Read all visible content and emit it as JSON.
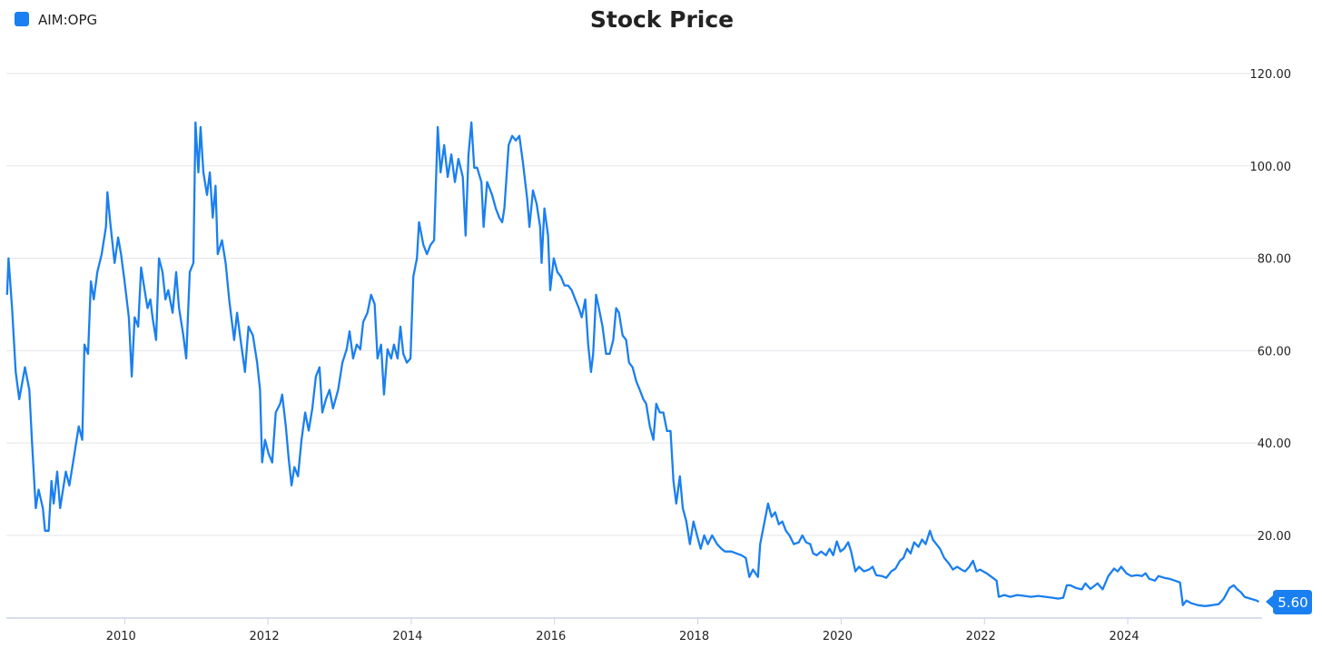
{
  "chart_data": {
    "type": "line",
    "title": "Stock Price",
    "legend": {
      "position": "top-left",
      "entries": [
        "AIM:OPG"
      ]
    },
    "xlabel": "",
    "ylabel": "",
    "xlim": [
      2008.4,
      2025.9
    ],
    "ylim": [
      2.1,
      120
    ],
    "x_ticks": [
      "2010",
      "2012",
      "2014",
      "2016",
      "2018",
      "2020",
      "2022",
      "2024"
    ],
    "y_ticks": [
      "20.00",
      "40.00",
      "60.00",
      "80.00",
      "100.00",
      "120.00"
    ],
    "y_axis_side": "right",
    "grid": {
      "horizontal": true,
      "vertical": false
    },
    "last_value_label": "5.60",
    "colors": {
      "series": "#1a7ff0",
      "grid": "#e3e5ea",
      "axis": "#ccd3e6"
    },
    "series": [
      {
        "name": "AIM:OPG",
        "x": [
          2008.41,
          2008.43,
          2008.48,
          2008.53,
          2008.58,
          2008.66,
          2008.72,
          2008.76,
          2008.81,
          2008.85,
          2008.91,
          2008.94,
          2008.99,
          2009.03,
          2009.06,
          2009.11,
          2009.15,
          2009.23,
          2009.28,
          2009.34,
          2009.41,
          2009.46,
          2009.49,
          2009.54,
          2009.58,
          2009.62,
          2009.67,
          2009.73,
          2009.79,
          2009.81,
          2009.85,
          2009.91,
          2009.96,
          2010.0,
          2010.05,
          2010.11,
          2010.15,
          2010.19,
          2010.24,
          2010.28,
          2010.33,
          2010.37,
          2010.41,
          2010.44,
          2010.49,
          2010.53,
          2010.58,
          2010.62,
          2010.66,
          2010.72,
          2010.77,
          2010.81,
          2010.87,
          2010.91,
          2010.96,
          2011.01,
          2011.04,
          2011.08,
          2011.11,
          2011.15,
          2011.2,
          2011.24,
          2011.28,
          2011.32,
          2011.35,
          2011.41,
          2011.46,
          2011.51,
          2011.54,
          2011.58,
          2011.62,
          2011.67,
          2011.73,
          2011.78,
          2011.84,
          2011.9,
          2011.94,
          2011.97,
          2012.01,
          2012.06,
          2012.11,
          2012.16,
          2012.22,
          2012.25,
          2012.3,
          2012.34,
          2012.38,
          2012.42,
          2012.47,
          2012.52,
          2012.57,
          2012.62,
          2012.67,
          2012.72,
          2012.77,
          2012.81,
          2012.86,
          2012.91,
          2012.96,
          2013.03,
          2013.09,
          2013.15,
          2013.19,
          2013.24,
          2013.29,
          2013.34,
          2013.38,
          2013.44,
          2013.49,
          2013.54,
          2013.58,
          2013.63,
          2013.67,
          2013.72,
          2013.77,
          2013.81,
          2013.86,
          2013.9,
          2013.94,
          2013.99,
          2014.04,
          2014.08,
          2014.13,
          2014.16,
          2014.22,
          2014.27,
          2014.32,
          2014.37,
          2014.42,
          2014.46,
          2014.51,
          2014.56,
          2014.61,
          2014.66,
          2014.71,
          2014.77,
          2014.81,
          2014.85,
          2014.89,
          2014.93,
          2014.97,
          2015.03,
          2015.06,
          2015.11,
          2015.18,
          2015.23,
          2015.28,
          2015.32,
          2015.35,
          2015.41,
          2015.46,
          2015.51,
          2015.56,
          2015.61,
          2015.67,
          2015.7,
          2015.75,
          2015.8,
          2015.85,
          2015.87,
          2015.91,
          2015.96,
          2015.99,
          2016.04,
          2016.09,
          2016.14,
          2016.19,
          2016.24,
          2016.29,
          2016.34,
          2016.39,
          2016.43,
          2016.48,
          2016.52,
          2016.56,
          2016.59,
          2016.63,
          2016.67,
          2016.72,
          2016.77,
          2016.82,
          2016.87,
          2016.91,
          2016.95,
          2017.0,
          2017.05,
          2017.09,
          2017.14,
          2017.19,
          2017.24,
          2017.29,
          2017.33,
          2017.38,
          2017.43,
          2017.47,
          2017.52,
          2017.57,
          2017.62,
          2017.67,
          2017.71,
          2017.75,
          2017.8,
          2017.84,
          2017.89,
          2017.94,
          2017.99,
          2018.04,
          2018.09,
          2018.14,
          2018.19,
          2018.25,
          2018.32,
          2018.38,
          2018.43,
          2018.52,
          2018.59,
          2018.66,
          2018.72,
          2018.77,
          2018.82,
          2018.89,
          2018.92,
          2018.97,
          2019.03,
          2019.08,
          2019.13,
          2019.18,
          2019.23,
          2019.28,
          2019.33,
          2019.39,
          2019.46,
          2019.51,
          2019.56,
          2019.62,
          2019.66,
          2019.71,
          2019.77,
          2019.84,
          2019.89,
          2019.94,
          2019.99,
          2020.04,
          2020.09,
          2020.15,
          2020.19,
          2020.25,
          2020.3,
          2020.37,
          2020.44,
          2020.49,
          2020.54,
          2020.62,
          2020.68,
          2020.75,
          2020.81,
          2020.87,
          2020.92,
          2020.97,
          2021.02,
          2021.07,
          2021.13,
          2021.18,
          2021.23,
          2021.29,
          2021.33,
          2021.38,
          2021.43,
          2021.49,
          2021.56,
          2021.61,
          2021.67,
          2021.73,
          2021.78,
          2021.84,
          2021.89,
          2021.94,
          2021.99,
          2022.08,
          2022.15,
          2022.22,
          2022.25,
          2022.33,
          2022.41,
          2022.51,
          2022.61,
          2022.7,
          2022.8,
          2022.9,
          2023.0,
          2023.08,
          2023.15,
          2023.2,
          2023.25,
          2023.33,
          2023.41,
          2023.46,
          2023.53,
          2023.58,
          2023.63,
          2023.7,
          2023.78,
          2023.86,
          2023.91,
          2023.96,
          2024.03,
          2024.1,
          2024.18,
          2024.25,
          2024.3,
          2024.35,
          2024.43,
          2024.48,
          2024.56,
          2024.63,
          2024.71,
          2024.78,
          2024.82,
          2024.87,
          2024.94,
          2025.03,
          2025.13,
          2025.23,
          2025.32,
          2025.39,
          2025.47,
          2025.53,
          2025.58,
          2025.63,
          2025.68,
          2025.76,
          2025.85,
          2025.88
        ],
        "y": [
          72.1,
          80.0,
          69.2,
          55.4,
          49.5,
          56.4,
          51.5,
          39.7,
          25.9,
          29.9,
          25.9,
          21.0,
          21.0,
          31.8,
          26.9,
          33.8,
          25.9,
          33.8,
          30.8,
          36.7,
          43.6,
          40.7,
          61.3,
          59.3,
          75.0,
          71.1,
          77.0,
          80.9,
          86.8,
          94.3,
          87.8,
          79.0,
          84.5,
          80.9,
          75.0,
          67.2,
          54.4,
          67.2,
          65.2,
          78.0,
          73.1,
          69.2,
          71.1,
          67.2,
          62.3,
          80.0,
          77.0,
          71.1,
          73.1,
          68.2,
          77.0,
          69.2,
          63.3,
          58.3,
          77.0,
          79.0,
          109.4,
          98.6,
          108.4,
          98.6,
          93.7,
          98.6,
          88.8,
          95.7,
          80.9,
          83.9,
          79.0,
          71.1,
          67.2,
          62.3,
          68.2,
          62.3,
          55.4,
          65.2,
          63.3,
          57.4,
          51.5,
          35.8,
          40.7,
          37.7,
          35.8,
          46.6,
          48.5,
          50.5,
          43.6,
          36.7,
          30.8,
          34.8,
          32.8,
          40.7,
          46.6,
          42.7,
          47.5,
          54.4,
          56.4,
          46.6,
          49.5,
          51.5,
          47.5,
          51.5,
          57.4,
          60.3,
          64.2,
          58.3,
          61.3,
          60.3,
          66.2,
          68.2,
          72.1,
          70.1,
          58.3,
          61.3,
          50.5,
          60.3,
          58.3,
          61.3,
          58.3,
          65.2,
          59.3,
          57.4,
          58.3,
          76.0,
          80.0,
          87.8,
          82.9,
          80.9,
          82.9,
          83.9,
          108.4,
          98.6,
          104.5,
          97.6,
          102.5,
          96.5,
          101.5,
          97.6,
          84.9,
          102.5,
          109.4,
          99.6,
          99.6,
          96.5,
          86.8,
          96.5,
          93.7,
          90.8,
          88.8,
          87.8,
          90.8,
          104.5,
          106.5,
          105.5,
          106.5,
          100.6,
          92.7,
          86.8,
          94.7,
          91.8,
          86.8,
          79.0,
          90.8,
          84.9,
          73.1,
          80.0,
          77.0,
          76.0,
          74.1,
          74.1,
          73.1,
          71.1,
          69.2,
          67.2,
          71.1,
          61.3,
          55.4,
          59.3,
          72.1,
          69.2,
          65.2,
          59.3,
          59.3,
          62.3,
          69.2,
          68.2,
          63.3,
          62.3,
          57.4,
          56.4,
          53.4,
          51.5,
          49.5,
          48.5,
          43.6,
          40.7,
          48.5,
          46.6,
          46.6,
          42.6,
          42.6,
          31.8,
          26.9,
          32.8,
          25.9,
          23.0,
          18.1,
          23.0,
          20.0,
          17.1,
          20.0,
          18.1,
          20.0,
          18.1,
          17.1,
          16.5,
          16.5,
          16.1,
          15.7,
          15.1,
          11.0,
          12.6,
          11.0,
          18.1,
          22.0,
          26.9,
          24.0,
          25.0,
          22.4,
          23.0,
          21.0,
          20.0,
          18.1,
          18.5,
          20.0,
          18.5,
          18.1,
          16.1,
          15.7,
          16.5,
          15.7,
          17.1,
          15.7,
          18.7,
          16.5,
          17.1,
          18.5,
          16.5,
          12.2,
          13.2,
          12.2,
          12.6,
          13.2,
          11.4,
          11.2,
          10.8,
          12.2,
          12.8,
          14.5,
          15.1,
          17.1,
          16.1,
          18.5,
          17.5,
          19.1,
          18.1,
          21.0,
          19.1,
          18.1,
          17.1,
          15.1,
          13.8,
          12.6,
          13.2,
          12.6,
          12.2,
          13.2,
          14.5,
          12.2,
          12.6,
          11.8,
          11.0,
          10.2,
          6.7,
          7.1,
          6.7,
          7.1,
          6.9,
          6.7,
          6.9,
          6.7,
          6.5,
          6.3,
          6.5,
          9.2,
          9.2,
          8.6,
          8.3,
          9.6,
          8.4,
          9.0,
          9.6,
          8.3,
          11.2,
          12.8,
          12.2,
          13.2,
          11.8,
          11.2,
          11.4,
          11.2,
          11.8,
          10.6,
          10.2,
          11.2,
          10.8,
          10.6,
          10.2,
          9.8,
          4.9,
          5.9,
          5.3,
          4.9,
          4.7,
          4.9,
          5.1,
          6.3,
          8.6,
          9.2,
          8.3,
          7.7,
          6.7,
          6.3,
          5.9,
          5.6
        ]
      }
    ]
  }
}
